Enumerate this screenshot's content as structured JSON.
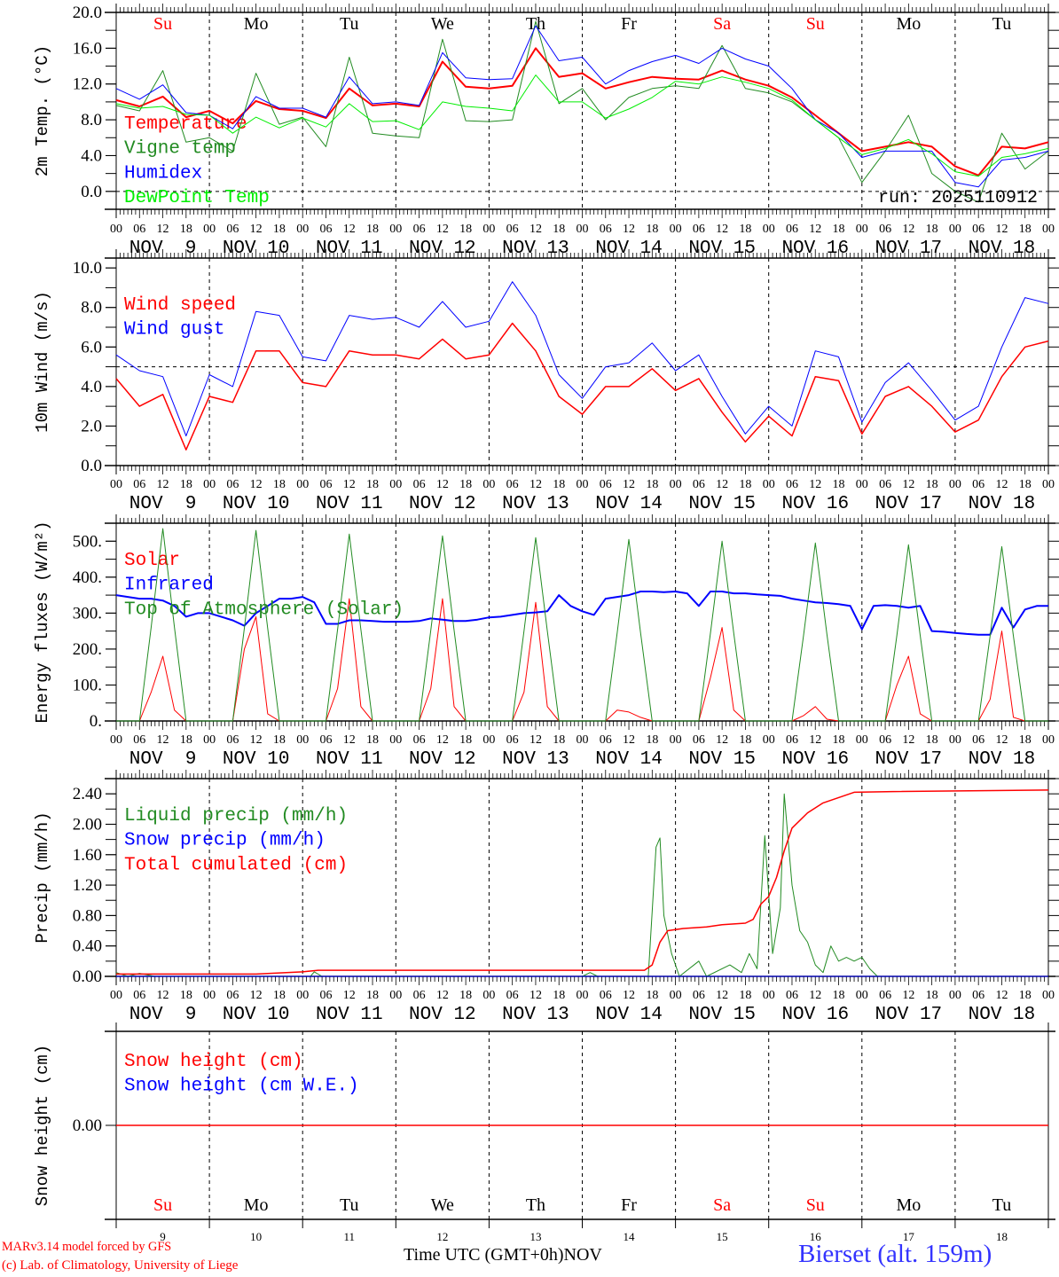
{
  "weekdays": [
    {
      "label": "Su",
      "color": "#ff0000"
    },
    {
      "label": "Mo",
      "color": "#000000"
    },
    {
      "label": "Tu",
      "color": "#000000"
    },
    {
      "label": "We",
      "color": "#000000"
    },
    {
      "label": "Th",
      "color": "#000000"
    },
    {
      "label": "Fr",
      "color": "#000000"
    },
    {
      "label": "Sa",
      "color": "#ff0000"
    },
    {
      "label": "Su",
      "color": "#ff0000"
    },
    {
      "label": "Mo",
      "color": "#000000"
    },
    {
      "label": "Tu",
      "color": "#000000"
    }
  ],
  "x_axis": {
    "hours_total": 240,
    "hour_labels": [
      "00",
      "06",
      "12",
      "18"
    ],
    "dates": [
      "NOV  9",
      "NOV 10",
      "NOV 11",
      "NOV 12",
      "NOV 13",
      "NOV 14",
      "NOV 15",
      "NOV 16",
      "NOV 17",
      "NOV 18"
    ],
    "day_numbers": [
      "9",
      "10",
      "11",
      "12",
      "13",
      "14",
      "15",
      "16",
      "17",
      "18"
    ]
  },
  "chart_data": [
    {
      "type": "line",
      "ylabel": "2m Temp. (°C)",
      "ylim": [
        -2,
        20
      ],
      "yticks": [
        {
          "v": 20,
          "t": "20.0"
        },
        {
          "v": 16,
          "t": "16.0"
        },
        {
          "v": 12,
          "t": "12.0"
        },
        {
          "v": 8,
          "t": "8.0"
        },
        {
          "v": 4,
          "t": "4.0"
        },
        {
          "v": 0,
          "t": "0.0"
        }
      ],
      "ref_line": 0,
      "annotation": "run: 2025110912",
      "series": [
        {
          "label": "Temperature",
          "color": "#ff0000",
          "width": 2,
          "dt": 6,
          "values": [
            10.2,
            9.5,
            10.6,
            8.3,
            9.0,
            7.6,
            10.1,
            9.2,
            9.0,
            8.2,
            11.5,
            9.6,
            9.8,
            9.5,
            14.5,
            11.7,
            11.5,
            11.8,
            16.0,
            12.8,
            13.2,
            11.5,
            12.2,
            12.8,
            12.6,
            12.5,
            13.5,
            12.5,
            11.8,
            10.5,
            8.5,
            6.5,
            4.5,
            5.0,
            5.5,
            5.0,
            2.8,
            1.8,
            5.0,
            4.8,
            5.5
          ]
        },
        {
          "label": "Vigne temp",
          "color": "#228b22",
          "width": 1,
          "dt": 6,
          "values": [
            9.6,
            9.0,
            13.5,
            5.5,
            6.0,
            4.5,
            13.2,
            7.5,
            8.3,
            5.0,
            15.0,
            6.5,
            6.2,
            6.0,
            17.0,
            7.9,
            7.8,
            8.0,
            19.0,
            9.8,
            11.5,
            8.0,
            10.5,
            11.5,
            11.8,
            11.5,
            16.3,
            11.5,
            11.0,
            10.0,
            8.0,
            6.0,
            1.0,
            4.5,
            8.5,
            2.0,
            0.0,
            -1.2,
            6.5,
            2.5,
            4.5
          ]
        },
        {
          "label": "Humidex",
          "color": "#0000ff",
          "width": 1,
          "dt": 6,
          "values": [
            11.5,
            10.3,
            11.9,
            8.8,
            8.5,
            7.0,
            10.6,
            9.3,
            9.3,
            8.3,
            12.8,
            9.8,
            10.0,
            9.6,
            15.5,
            12.7,
            12.5,
            12.6,
            18.5,
            14.6,
            15.0,
            12.0,
            13.5,
            14.5,
            15.2,
            14.3,
            16.0,
            14.8,
            14.0,
            11.5,
            8.0,
            6.5,
            3.8,
            4.5,
            4.5,
            4.5,
            1.0,
            0.5,
            3.5,
            3.8,
            4.5
          ]
        },
        {
          "label": "DewPoint Temp",
          "color": "#00ee00",
          "width": 1,
          "dt": 6,
          "values": [
            9.8,
            9.3,
            9.5,
            8.6,
            8.5,
            6.5,
            8.3,
            7.1,
            8.2,
            7.2,
            9.8,
            7.8,
            7.9,
            6.9,
            10.0,
            9.5,
            9.3,
            9.0,
            13.0,
            10.0,
            10.0,
            8.2,
            9.2,
            10.5,
            12.3,
            12.0,
            12.8,
            12.2,
            11.5,
            10.2,
            8.0,
            6.0,
            4.1,
            4.8,
            5.8,
            4.2,
            2.2,
            1.7,
            3.8,
            4.2,
            4.8
          ]
        }
      ]
    },
    {
      "type": "line",
      "ylabel": "10m Wind (m/s)",
      "ylim": [
        0,
        10.5
      ],
      "yticks": [
        {
          "v": 10,
          "t": "10.0"
        },
        {
          "v": 8,
          "t": "8.0"
        },
        {
          "v": 6,
          "t": "6.0"
        },
        {
          "v": 4,
          "t": "4.0"
        },
        {
          "v": 2,
          "t": "2.0"
        },
        {
          "v": 0,
          "t": "0.0"
        }
      ],
      "ref_line": 5,
      "series": [
        {
          "label": "Wind speed",
          "color": "#ff0000",
          "width": 1.5,
          "dt": 6,
          "values": [
            4.4,
            3.0,
            3.6,
            0.8,
            3.5,
            3.2,
            5.8,
            5.8,
            4.2,
            4.0,
            5.8,
            5.6,
            5.6,
            5.4,
            6.4,
            5.4,
            5.6,
            7.2,
            5.8,
            3.5,
            2.6,
            4.0,
            4.0,
            4.9,
            3.8,
            4.4,
            2.7,
            1.2,
            2.5,
            1.5,
            4.5,
            4.3,
            1.6,
            3.5,
            4.0,
            3.0,
            1.7,
            2.3,
            4.5,
            6.0,
            6.3
          ]
        },
        {
          "label": "Wind gust",
          "color": "#0000ff",
          "width": 1,
          "dt": 6,
          "values": [
            5.6,
            4.8,
            4.5,
            1.5,
            4.6,
            4.0,
            7.8,
            7.6,
            5.5,
            5.3,
            7.6,
            7.4,
            7.5,
            7.0,
            8.3,
            7.0,
            7.3,
            9.3,
            7.6,
            4.6,
            3.4,
            5.0,
            5.2,
            6.2,
            4.8,
            5.6,
            3.5,
            1.6,
            3.0,
            2.0,
            5.8,
            5.5,
            2.2,
            4.2,
            5.2,
            3.8,
            2.3,
            3.0,
            6.0,
            8.5,
            8.2
          ]
        }
      ]
    },
    {
      "type": "line",
      "ylabel": "Energy fluxes (W/m²)",
      "ylim": [
        0,
        550
      ],
      "yticks": [
        {
          "v": 500,
          "t": "500."
        },
        {
          "v": 400,
          "t": "400."
        },
        {
          "v": 300,
          "t": "300."
        },
        {
          "v": 200,
          "t": "200."
        },
        {
          "v": 100,
          "t": "100."
        },
        {
          "v": 0,
          "t": "0."
        }
      ],
      "series": [
        {
          "label": "Solar",
          "color": "#ff0000",
          "width": 1,
          "dt": 3,
          "values": [
            0,
            0,
            0,
            80,
            180,
            30,
            0,
            0,
            0,
            0,
            0,
            200,
            290,
            20,
            0,
            0,
            0,
            0,
            0,
            90,
            340,
            40,
            0,
            0,
            0,
            0,
            0,
            90,
            340,
            40,
            0,
            0,
            0,
            0,
            0,
            80,
            330,
            40,
            0,
            0,
            0,
            0,
            0,
            30,
            25,
            10,
            0,
            0,
            0,
            0,
            0,
            120,
            260,
            30,
            0,
            0,
            0,
            0,
            0,
            15,
            40,
            5,
            0,
            0,
            0,
            0,
            0,
            100,
            180,
            20,
            0,
            0,
            0,
            0,
            0,
            60,
            250,
            10,
            0,
            0,
            0
          ]
        },
        {
          "label": "Infrared",
          "color": "#0000ff",
          "width": 2,
          "dt": 3,
          "values": [
            350,
            345,
            340,
            340,
            335,
            320,
            290,
            300,
            300,
            290,
            280,
            265,
            300,
            320,
            340,
            340,
            345,
            330,
            270,
            270,
            280,
            280,
            278,
            276,
            276,
            276,
            278,
            285,
            282,
            278,
            278,
            282,
            288,
            290,
            295,
            300,
            302,
            305,
            350,
            320,
            305,
            295,
            340,
            345,
            350,
            360,
            360,
            358,
            360,
            355,
            320,
            360,
            360,
            355,
            355,
            352,
            350,
            348,
            340,
            335,
            330,
            328,
            325,
            320,
            255,
            320,
            322,
            320,
            315,
            320,
            250,
            248,
            245,
            242,
            240,
            240,
            315,
            260,
            310,
            320,
            320
          ]
        },
        {
          "label": "Top of Atmosphere (Solar)",
          "color": "#228b22",
          "width": 1,
          "dt": 3,
          "values": [
            0,
            0,
            0,
            260,
            535,
            260,
            0,
            0,
            0,
            0,
            0,
            258,
            530,
            258,
            0,
            0,
            0,
            0,
            0,
            254,
            520,
            254,
            0,
            0,
            0,
            0,
            0,
            252,
            515,
            252,
            0,
            0,
            0,
            0,
            0,
            250,
            510,
            250,
            0,
            0,
            0,
            0,
            0,
            246,
            505,
            246,
            0,
            0,
            0,
            0,
            0,
            244,
            500,
            244,
            0,
            0,
            0,
            0,
            0,
            240,
            495,
            240,
            0,
            0,
            0,
            0,
            0,
            238,
            490,
            238,
            0,
            0,
            0,
            0,
            0,
            236,
            485,
            236,
            0,
            0,
            0
          ]
        }
      ]
    },
    {
      "type": "line",
      "ylabel": "Precip (mm/h)",
      "ylim": [
        0,
        2.6
      ],
      "yticks": [
        {
          "v": 2.4,
          "t": "2.40"
        },
        {
          "v": 2.0,
          "t": "2.00"
        },
        {
          "v": 1.6,
          "t": "1.60"
        },
        {
          "v": 1.2,
          "t": "1.20"
        },
        {
          "v": 0.8,
          "t": "0.80"
        },
        {
          "v": 0.4,
          "t": "0.40"
        },
        {
          "v": 0,
          "t": "0.00"
        }
      ],
      "series": [
        {
          "label": "Liquid precip (mm/h)",
          "color": "#228b22",
          "width": 1,
          "points": [
            [
              0,
              0.05
            ],
            [
              3,
              0
            ],
            [
              6,
              0.04
            ],
            [
              10,
              0
            ],
            [
              50,
              0
            ],
            [
              51,
              0.06
            ],
            [
              53,
              0
            ],
            [
              120,
              0
            ],
            [
              122,
              0.05
            ],
            [
              124,
              0
            ],
            [
              137,
              0
            ],
            [
              139,
              1.7
            ],
            [
              140,
              1.82
            ],
            [
              141,
              0.8
            ],
            [
              143,
              0.3
            ],
            [
              145,
              0
            ],
            [
              150,
              0.2
            ],
            [
              152,
              0
            ],
            [
              158,
              0.15
            ],
            [
              161,
              0.05
            ],
            [
              163,
              0.3
            ],
            [
              165,
              0.1
            ],
            [
              167,
              1.85
            ],
            [
              169,
              0.3
            ],
            [
              171,
              0.9
            ],
            [
              172,
              2.4
            ],
            [
              174,
              1.2
            ],
            [
              176,
              0.6
            ],
            [
              178,
              0.45
            ],
            [
              180,
              0.15
            ],
            [
              182,
              0.05
            ],
            [
              184,
              0.4
            ],
            [
              186,
              0.2
            ],
            [
              188,
              0.25
            ],
            [
              190,
              0.2
            ],
            [
              192,
              0.25
            ],
            [
              194,
              0.1
            ],
            [
              196,
              0
            ],
            [
              240,
              0
            ]
          ]
        },
        {
          "label": "Snow precip (mm/h)",
          "color": "#0000ff",
          "width": 1,
          "points": [
            [
              0,
              0
            ],
            [
              240,
              0
            ]
          ]
        },
        {
          "label": "Total cumulated (cm)",
          "color": "#ff0000",
          "width": 1.5,
          "points": [
            [
              0,
              0.03
            ],
            [
              36,
              0.03
            ],
            [
              48,
              0.06
            ],
            [
              52,
              0.08
            ],
            [
              136,
              0.08
            ],
            [
              138,
              0.15
            ],
            [
              140,
              0.45
            ],
            [
              142,
              0.6
            ],
            [
              146,
              0.63
            ],
            [
              152,
              0.65
            ],
            [
              156,
              0.68
            ],
            [
              162,
              0.7
            ],
            [
              164,
              0.75
            ],
            [
              166,
              0.95
            ],
            [
              168,
              1.05
            ],
            [
              170,
              1.3
            ],
            [
              172,
              1.65
            ],
            [
              174,
              1.95
            ],
            [
              178,
              2.15
            ],
            [
              182,
              2.28
            ],
            [
              186,
              2.35
            ],
            [
              190,
              2.42
            ],
            [
              200,
              2.43
            ],
            [
              240,
              2.45
            ]
          ]
        }
      ]
    },
    {
      "type": "line",
      "ylabel": "Snow height (cm)",
      "ylim": [
        -1,
        1
      ],
      "yticks": [
        {
          "v": 0,
          "t": "0.00"
        }
      ],
      "series": [
        {
          "label": "Snow height (cm)",
          "color": "#ff0000",
          "width": 1.5,
          "points": [
            [
              0,
              0
            ],
            [
              240,
              0
            ]
          ]
        },
        {
          "label": "Snow height (cm W.E.)",
          "color": "#0000ff",
          "width": 1,
          "points": []
        }
      ]
    }
  ],
  "footer": {
    "model": "MARv3.14 model forced by GFS",
    "credit": "(c) Lab. of Climatology, University of Liege",
    "xlabel": "Time UTC (GMT+0h)",
    "month": "NOV",
    "station": "Bierset (alt. 159m)"
  }
}
